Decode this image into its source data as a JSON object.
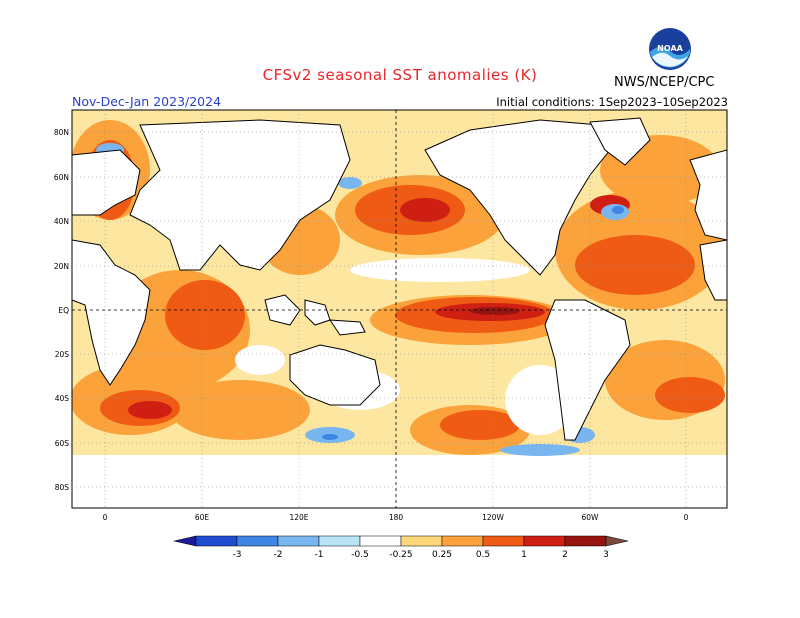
{
  "title": "CFSv2 seasonal SST anomalies (K)",
  "season": "Nov-Dec-Jan 2023/2024",
  "initial_conditions": "Initial conditions: 1Sep2023–10Sep2023",
  "agency": "NWS/NCEP/CPC",
  "logo": {
    "text": "NOAA",
    "icon": "noaa-logo"
  },
  "lat_labels": [
    "80N",
    "60N",
    "40N",
    "20N",
    "EQ",
    "20S",
    "40S",
    "60S",
    "80S"
  ],
  "lon_labels": [
    "0",
    "60E",
    "120E",
    "180",
    "120W",
    "60W",
    "0"
  ],
  "colorbar": {
    "labels": [
      "-3",
      "-2",
      "-1",
      "-0.5",
      "-0.25",
      "0.25",
      "0.5",
      "1",
      "2",
      "3"
    ],
    "colors": [
      "#1c1a9a",
      "#1f4bd1",
      "#3f86e4",
      "#79b6ef",
      "#b9e4f6",
      "#ffffff",
      "#fbd77a",
      "#fba33a",
      "#ef5a14",
      "#cf1f13",
      "#961410",
      "#7a4a3a"
    ]
  },
  "colors": {
    "title": "#e8262a",
    "season": "#2a3fd0",
    "land": "#ffffff",
    "coast": "#000000"
  }
}
